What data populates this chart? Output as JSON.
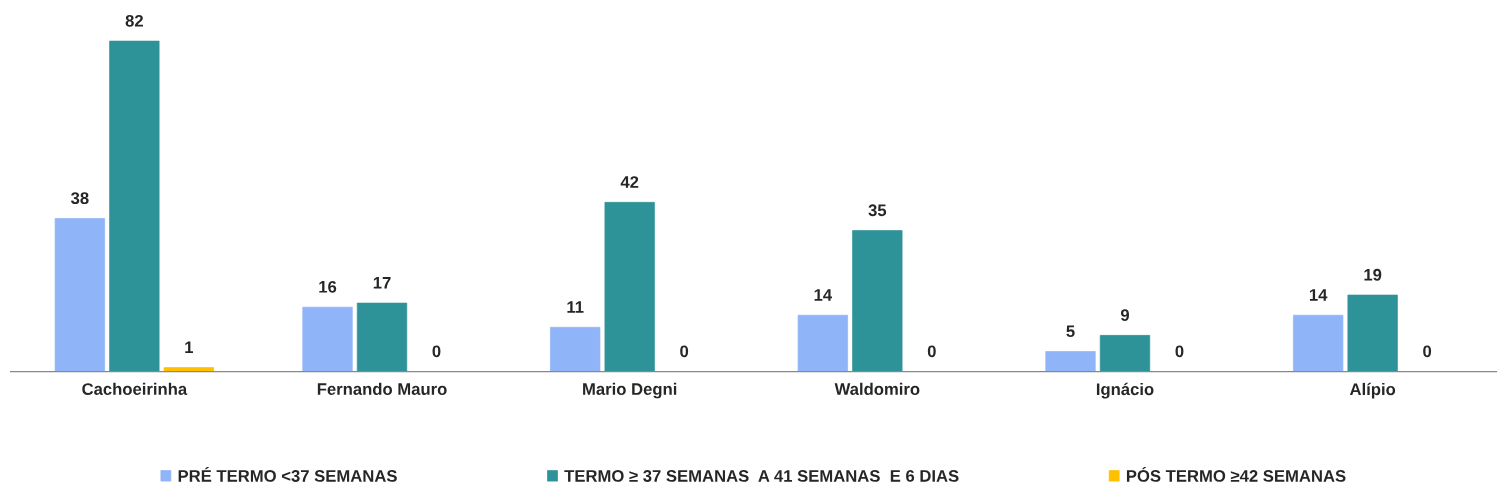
{
  "chart_data": {
    "type": "bar",
    "categories": [
      "Cachoeirinha",
      "Fernando Mauro",
      "Mario Degni",
      "Waldomiro",
      "Ignácio",
      "Alípio"
    ],
    "series": [
      {
        "name": "PRÉ TERMO <37 SEMANAS",
        "color": "#8fb4f8",
        "values": [
          38,
          16,
          11,
          14,
          5,
          14
        ]
      },
      {
        "name": "TERMO ≥ 37 SEMANAS  A 41 SEMANAS  E 6 DIAS",
        "color": "#2e9399",
        "values": [
          82,
          17,
          42,
          35,
          9,
          19
        ]
      },
      {
        "name": "PÓS TERMO ≥42 SEMANAS",
        "color": "#ffc000",
        "values": [
          1,
          0,
          0,
          0,
          0,
          0
        ]
      }
    ],
    "data_labels": true,
    "grid": false,
    "legend": "bottom"
  }
}
